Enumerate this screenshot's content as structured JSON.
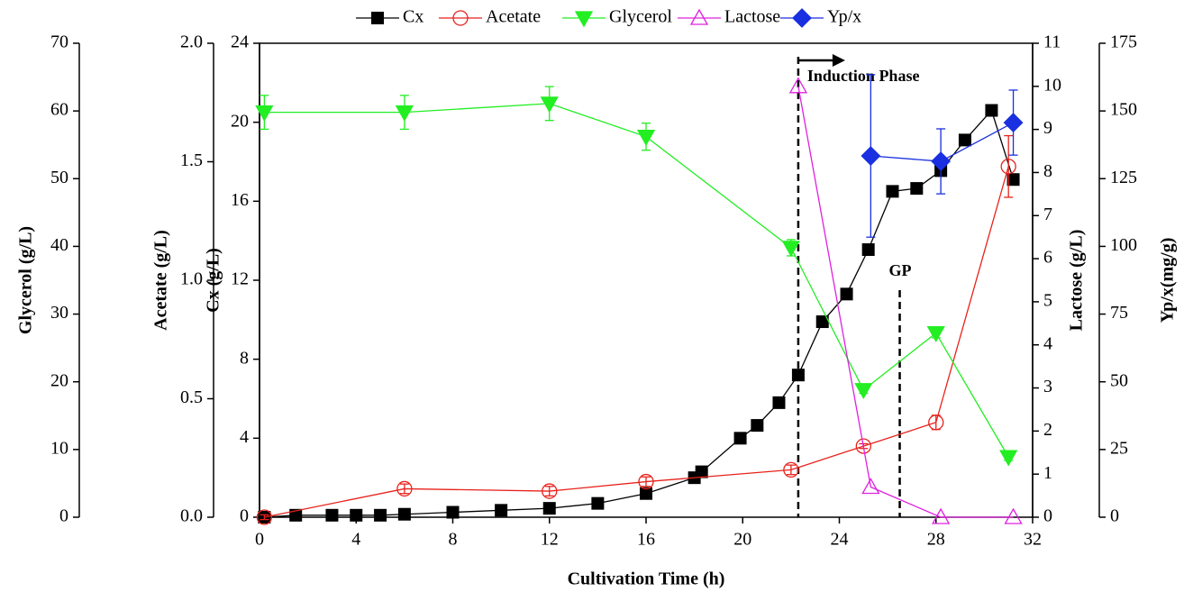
{
  "chart_data": {
    "type": "line",
    "xlabel": "Cultivation Time (h)",
    "xlim": [
      0,
      32
    ],
    "xticks": [
      0,
      4,
      8,
      12,
      16,
      20,
      24,
      28,
      32
    ],
    "axes": [
      {
        "id": "glycerol",
        "label": "Glycerol (g/L)",
        "ylim": [
          0,
          70
        ],
        "yticks": [
          0,
          10,
          20,
          30,
          40,
          50,
          60,
          70
        ]
      },
      {
        "id": "acetate",
        "label": "Acetate (g/L)",
        "ylim": [
          0,
          2
        ],
        "yticks": [
          {
            "value": 0,
            "label": "0.0"
          },
          0.5,
          {
            "value": 1,
            "label": "1.0"
          },
          1.5,
          {
            "value": 2,
            "label": "2.0"
          }
        ]
      },
      {
        "id": "cx",
        "label": "Cx (g/L)",
        "ylim": [
          0,
          24
        ],
        "yticks": [
          0,
          4,
          8,
          12,
          16,
          20,
          24
        ]
      },
      {
        "id": "lactose",
        "label": "Lactose (g/L)",
        "ylim": [
          0,
          11
        ],
        "yticks": [
          0,
          1,
          2,
          3,
          4,
          5,
          6,
          7,
          8,
          9,
          10,
          11
        ]
      },
      {
        "id": "ypx",
        "label": "Yp/x(mg/g)",
        "ylim": [
          0,
          175
        ],
        "yticks": [
          0,
          25,
          50,
          75,
          100,
          125,
          150,
          175
        ]
      }
    ],
    "series": [
      {
        "name": "Cx",
        "color": "#000000",
        "marker": "square",
        "axis": "cx",
        "x": [
          0.2,
          1.5,
          3,
          4,
          5,
          6,
          8,
          10,
          12,
          14,
          16,
          18,
          18.3,
          19.9,
          20.6,
          21.5,
          22.3,
          23.3,
          24.3,
          25.2,
          26.2,
          27.2,
          28.2,
          29.2,
          30.3,
          31.2
        ],
        "values": [
          0,
          0.1,
          0.1,
          0.1,
          0.1,
          0.15,
          0.25,
          0.35,
          0.45,
          0.7,
          1.2,
          2.0,
          2.3,
          4.0,
          4.65,
          5.8,
          7.2,
          9.9,
          11.3,
          13.55,
          16.5,
          16.65,
          17.55,
          19.1,
          20.6,
          17.1
        ]
      },
      {
        "name": "Acetate",
        "color": "#e8221c",
        "marker": "circle",
        "axis": "acetate",
        "x": [
          0.2,
          6,
          12,
          16,
          22,
          25,
          28,
          31
        ],
        "values": [
          0,
          0.12,
          0.11,
          0.15,
          0.2,
          0.3,
          0.4,
          1.48
        ],
        "errors": [
          0.01,
          0.02,
          0.02,
          0.02,
          0.02,
          0.01,
          0.03,
          0.13
        ]
      },
      {
        "name": "Glycerol",
        "color": "#22ee22",
        "marker": "tri-down",
        "axis": "glycerol",
        "x": [
          0.2,
          6,
          12,
          16,
          22,
          25,
          28,
          31
        ],
        "values": [
          59.8,
          59.8,
          61.1,
          56.2,
          39.8,
          18.8,
          27.2,
          8.9
        ],
        "errors": [
          2.5,
          2.5,
          2.5,
          2,
          1.2,
          0.5,
          0.7,
          0.5
        ]
      },
      {
        "name": "Lactose",
        "color": "#e020e0",
        "marker": "tri-up",
        "axis": "lactose",
        "x": [
          22.3,
          25.3,
          28.2,
          31.2
        ],
        "values": [
          10.0,
          0.7,
          0,
          0
        ]
      },
      {
        "name": "Yp/x",
        "color": "#1a2fe0",
        "marker": "diamond",
        "axis": "ypx",
        "x": [
          25.3,
          28.2,
          31.2
        ],
        "values": [
          133.4,
          131.4,
          145.7
        ],
        "errors": [
          30,
          12,
          12
        ]
      }
    ],
    "annotations": [
      {
        "text": "Induction Phase",
        "x": 22.3
      },
      {
        "text": "GP",
        "x": 26.5
      }
    ]
  }
}
